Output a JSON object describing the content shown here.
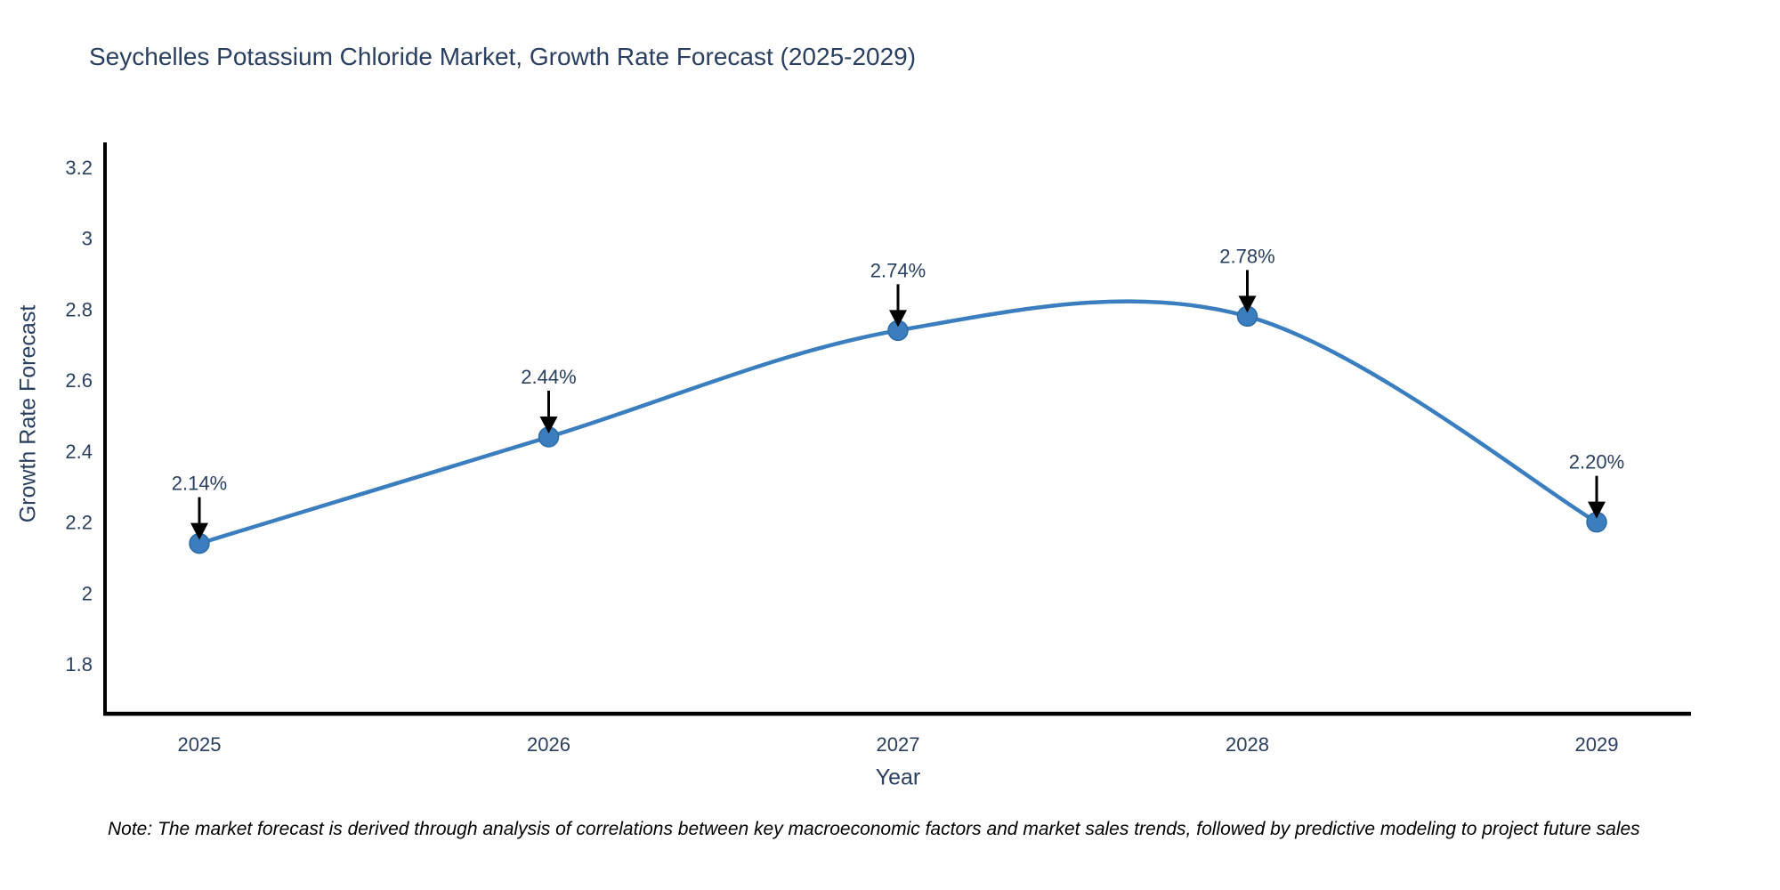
{
  "note": "Note: The market forecast is derived through analysis of correlations between key macroeconomic factors and market sales trends, followed by predictive modeling to project future sales",
  "chart_data": {
    "type": "line",
    "title": "Seychelles Potassium Chloride Market, Growth Rate Forecast (2025-2029)",
    "xlabel": "Year",
    "ylabel": "Growth Rate Forecast",
    "categories": [
      "2025",
      "2026",
      "2027",
      "2028",
      "2029"
    ],
    "series": [
      {
        "name": "Growth Rate Forecast",
        "values": [
          2.14,
          2.44,
          2.74,
          2.78,
          2.2
        ],
        "point_labels": [
          "2.14%",
          "2.44%",
          "2.74%",
          "2.78%",
          "2.20%"
        ]
      }
    ],
    "line_shape": "spline",
    "markers": true,
    "annotations_arrows": true,
    "yticks": [
      "3.2",
      "3",
      "2.8",
      "2.6",
      "2.4",
      "2.2",
      "2",
      "1.8"
    ],
    "ytick_values": [
      3.2,
      3.0,
      2.8,
      2.6,
      2.4,
      2.2,
      2.0,
      1.8
    ],
    "ylim": [
      1.66,
      3.27
    ],
    "grid": false,
    "legend": "none",
    "colors": {
      "line": "#3a7ebf",
      "marker": "#3a7ebf",
      "marker_edge": "#2e6ba5",
      "label_text": "#2a3f5f",
      "tick_text": "#2a3f5f",
      "axis_line": "#000000",
      "arrow": "#000000",
      "background": "#ffffff"
    }
  }
}
